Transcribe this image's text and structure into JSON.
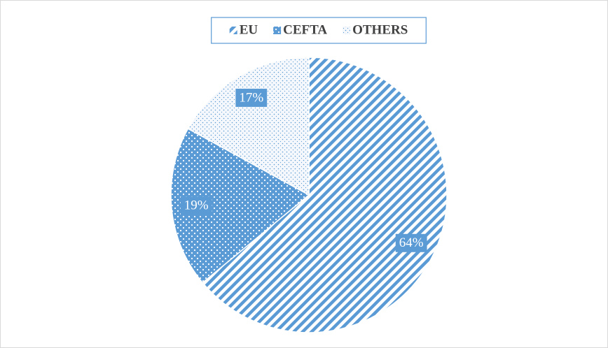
{
  "chart_data": {
    "type": "pie",
    "categories": [
      "EU",
      "CEFTA",
      "OTHERS"
    ],
    "values": [
      64,
      19,
      17
    ],
    "value_labels": [
      "64%",
      "19%",
      "17%"
    ],
    "colors": [
      "#5b9bd5",
      "#5b9bd5",
      "#5b9bd5"
    ],
    "legend": "top"
  }
}
